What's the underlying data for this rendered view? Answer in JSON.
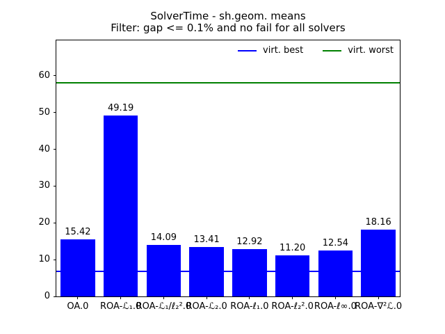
{
  "chart_data": {
    "type": "bar",
    "title": "SolverTime - sh.geom. means",
    "subtitle": "Filter: gap <= 0.1% and no fail for all solvers",
    "categories": [
      "OA.0",
      "ROA-ℒ₁.0",
      "ROA-ℒ₁/ℓ₂².0",
      "ROA-ℒ₂.0",
      "ROA-ℓ₁.0",
      "ROA-ℓ₂².0",
      "ROA-ℓ∞.0",
      "ROA-∇²ℒ.0"
    ],
    "values": [
      15.42,
      49.19,
      14.09,
      13.41,
      12.92,
      11.2,
      12.54,
      18.16
    ],
    "value_labels": [
      "15.42",
      "49.19",
      "14.09",
      "13.41",
      "12.92",
      "11.20",
      "12.54",
      "18.16"
    ],
    "bar_color": "#0000ff",
    "xlabel": "",
    "ylabel": "",
    "yticks": [
      0,
      10,
      20,
      30,
      40,
      50,
      60
    ],
    "ylim": [
      0,
      69.6
    ],
    "grid": false,
    "bar_width_fraction": 0.8,
    "reference_lines": [
      {
        "name": "virt. best",
        "value": 6.9,
        "color": "#0000ff"
      },
      {
        "name": "virt. worst",
        "value": 58.0,
        "color": "#008000"
      }
    ],
    "legend": {
      "position": "upper right",
      "columns": 2,
      "entries": [
        {
          "label": "virt. best",
          "color": "#0000ff"
        },
        {
          "label": "virt. worst",
          "color": "#008000"
        }
      ]
    }
  }
}
